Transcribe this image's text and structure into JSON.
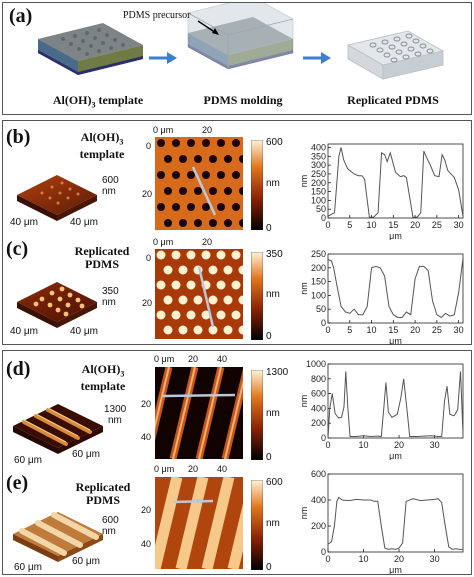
{
  "panel_a": {
    "label": "(a)",
    "annotation": "PDMS precursor",
    "captions": [
      "Al(OH)3 template",
      "PDMS molding",
      "Replicated PDMS"
    ]
  },
  "panel_b": {
    "label": "(b)",
    "title_line1": "Al(OH)3",
    "title_line2": "template",
    "height_label": "600",
    "height_unit": "nm",
    "axis_3d": [
      "40 μm",
      "40 μm"
    ],
    "map_xticks": [
      "0 μm",
      "20"
    ],
    "map_yticks": [
      "0",
      "20"
    ],
    "cbar_max": "600",
    "cbar_unit": "nm",
    "cbar_min": "0"
  },
  "panel_c": {
    "label": "(c)",
    "title_line1": "Replicated",
    "title_line2": "PDMS",
    "height_label": "350",
    "height_unit": "nm",
    "axis_3d": [
      "40 μm",
      "40 μm"
    ],
    "map_xticks": [
      "0 μm",
      "20"
    ],
    "map_yticks": [
      "0",
      "20"
    ],
    "cbar_max": "350",
    "cbar_unit": "nm",
    "cbar_min": "0"
  },
  "panel_d": {
    "label": "(d)",
    "title_line1": "Al(OH)3",
    "title_line2": "template",
    "height_label": "1300",
    "height_unit": "nm",
    "axis_3d": [
      "60 μm",
      "60 μm"
    ],
    "map_xticks": [
      "0 μm",
      "20",
      "40"
    ],
    "map_yticks": [
      "20",
      "40"
    ],
    "cbar_max": "1300",
    "cbar_unit": "nm",
    "cbar_min": "0"
  },
  "panel_e": {
    "label": "(e)",
    "title_line1": "Replicated",
    "title_line2": "PDMS",
    "height_label": "600",
    "height_unit": "nm",
    "axis_3d": [
      "60 μm",
      "60 μm"
    ],
    "map_xticks": [
      "0 μm",
      "20",
      "40"
    ],
    "map_yticks": [
      "20",
      "40"
    ],
    "cbar_max": "600",
    "cbar_unit": "nm",
    "cbar_min": "0"
  },
  "chart_data": [
    {
      "type": "line",
      "id": "b",
      "xlabel": "μm",
      "ylabel": "nm",
      "xlim": [
        0,
        31
      ],
      "ylim": [
        0,
        420
      ],
      "xticks": [
        0,
        5,
        10,
        15,
        20,
        25,
        30
      ],
      "yticks": [
        0,
        50,
        100,
        150,
        200,
        250,
        300,
        350,
        400
      ],
      "series": [
        {
          "x": [
            0,
            1.5,
            2.5,
            3,
            3.6,
            4.5,
            6,
            7,
            7.8,
            8.4,
            9.5,
            10.5,
            11.5,
            12.3,
            13,
            13.6,
            14.3,
            15.5,
            16.6,
            17.4,
            18,
            19.5,
            20.5,
            21.3,
            22,
            22.7,
            23.5,
            24.5,
            25.5,
            26.2,
            26.8,
            27.5,
            29,
            30,
            31
          ],
          "y": [
            10,
            30,
            350,
            400,
            330,
            280,
            250,
            240,
            240,
            220,
            5,
            5,
            30,
            370,
            360,
            320,
            370,
            260,
            235,
            240,
            230,
            5,
            5,
            30,
            380,
            340,
            300,
            240,
            235,
            360,
            330,
            270,
            230,
            160,
            10
          ]
        }
      ]
    },
    {
      "type": "line",
      "id": "c",
      "xlabel": "μm",
      "ylabel": "nm",
      "xlim": [
        0,
        31
      ],
      "ylim": [
        0,
        250
      ],
      "xticks": [
        0,
        5,
        10,
        15,
        20,
        25,
        30
      ],
      "yticks": [
        0,
        50,
        100,
        150,
        200,
        250
      ],
      "series": [
        {
          "x": [
            0,
            0.8,
            1.3,
            2,
            3,
            4,
            5,
            6,
            7,
            8,
            9,
            10,
            11,
            12,
            13,
            14,
            15,
            16,
            17,
            18,
            19,
            20,
            21,
            22,
            23,
            24,
            25,
            26,
            27,
            28,
            29,
            30,
            31
          ],
          "y": [
            230,
            225,
            200,
            140,
            60,
            40,
            35,
            50,
            30,
            30,
            60,
            200,
            205,
            200,
            170,
            60,
            30,
            20,
            20,
            40,
            30,
            160,
            205,
            205,
            190,
            80,
            30,
            20,
            35,
            25,
            30,
            110,
            235
          ]
        }
      ]
    },
    {
      "type": "line",
      "id": "d",
      "xlabel": "μm",
      "ylabel": "nm",
      "xlim": [
        0,
        38
      ],
      "ylim": [
        0,
        1000
      ],
      "xticks": [
        0,
        10,
        20,
        30
      ],
      "yticks": [
        0,
        200,
        400,
        600,
        800,
        1000
      ],
      "series": [
        {
          "x": [
            0,
            0.5,
            1.2,
            2,
            3,
            3.8,
            4.5,
            5,
            5.6,
            6.2,
            8,
            10,
            12,
            14,
            15,
            15.7,
            16.3,
            17,
            18,
            19.5,
            20.5,
            21.3,
            22.2,
            23,
            25,
            27,
            29,
            31,
            32,
            32.8,
            33.5,
            34.3,
            35.5,
            36.5,
            37.3,
            38
          ],
          "y": [
            0,
            400,
            600,
            330,
            270,
            280,
            420,
            900,
            400,
            20,
            20,
            30,
            20,
            25,
            20,
            400,
            750,
            350,
            280,
            320,
            540,
            800,
            400,
            20,
            20,
            25,
            30,
            20,
            20,
            500,
            700,
            320,
            300,
            380,
            900,
            50
          ]
        }
      ]
    },
    {
      "type": "line",
      "id": "e",
      "xlabel": "μm",
      "ylabel": "nm",
      "xlim": [
        0,
        38
      ],
      "ylim": [
        0,
        600
      ],
      "xticks": [
        0,
        10,
        20,
        30
      ],
      "yticks": [
        0,
        200,
        400,
        600
      ],
      "series": [
        {
          "x": [
            0,
            1,
            1.8,
            2.5,
            3,
            4,
            6,
            8,
            10,
            12,
            13,
            14,
            15,
            16,
            17,
            18,
            19,
            20,
            21,
            22,
            24,
            26,
            28,
            30,
            31,
            32,
            33,
            34,
            35,
            36,
            37,
            38
          ],
          "y": [
            60,
            80,
            200,
            390,
            420,
            400,
            395,
            405,
            400,
            400,
            390,
            390,
            200,
            30,
            20,
            25,
            20,
            30,
            70,
            390,
            410,
            395,
            400,
            405,
            410,
            380,
            200,
            40,
            20,
            25,
            20,
            20
          ]
        }
      ]
    }
  ]
}
